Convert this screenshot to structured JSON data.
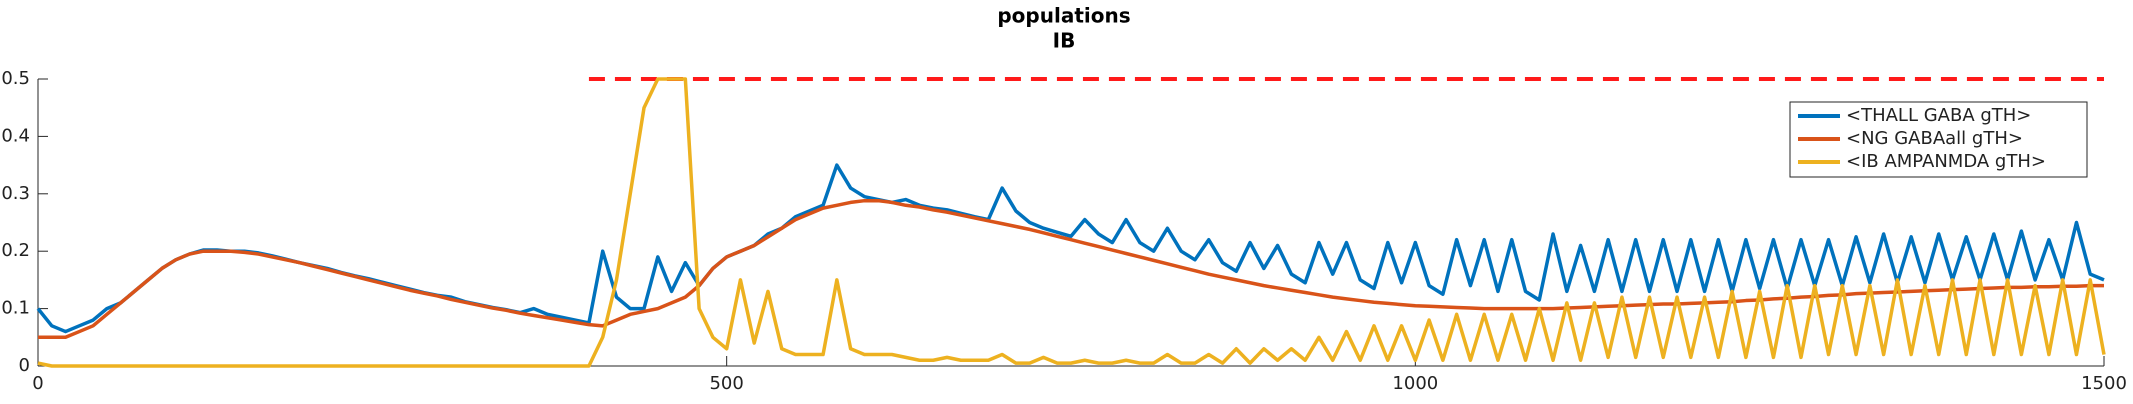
{
  "chart_data": {
    "type": "line",
    "title": "populations",
    "subtitle": "IB",
    "x": [
      0,
      10,
      20,
      30,
      40,
      50,
      60,
      70,
      80,
      90,
      100,
      110,
      120,
      130,
      140,
      150,
      160,
      170,
      180,
      190,
      200,
      210,
      220,
      230,
      240,
      250,
      260,
      270,
      280,
      290,
      300,
      310,
      320,
      330,
      340,
      350,
      360,
      370,
      380,
      390,
      400,
      410,
      420,
      430,
      440,
      450,
      460,
      470,
      480,
      490,
      500,
      510,
      520,
      530,
      540,
      550,
      560,
      570,
      580,
      590,
      600,
      610,
      620,
      630,
      640,
      650,
      660,
      670,
      680,
      690,
      700,
      710,
      720,
      730,
      740,
      750,
      760,
      770,
      780,
      790,
      800,
      810,
      820,
      830,
      840,
      850,
      860,
      870,
      880,
      890,
      900,
      910,
      920,
      930,
      940,
      950,
      960,
      970,
      980,
      990,
      1000,
      1010,
      1020,
      1030,
      1040,
      1050,
      1060,
      1070,
      1080,
      1090,
      1100,
      1110,
      1120,
      1130,
      1140,
      1150,
      1160,
      1170,
      1180,
      1190,
      1200,
      1210,
      1220,
      1230,
      1240,
      1250,
      1260,
      1270,
      1280,
      1290,
      1300,
      1310,
      1320,
      1330,
      1340,
      1350,
      1360,
      1370,
      1380,
      1390,
      1400,
      1410,
      1420,
      1430,
      1440,
      1450,
      1460,
      1470,
      1480,
      1490,
      1500
    ],
    "series": [
      {
        "name": "<THALL GABA gTH>",
        "color": "#0072bd",
        "values": [
          0.1,
          0.07,
          0.06,
          0.07,
          0.08,
          0.1,
          0.11,
          0.13,
          0.15,
          0.17,
          0.185,
          0.195,
          0.202,
          0.202,
          0.2,
          0.2,
          0.197,
          0.192,
          0.186,
          0.18,
          0.175,
          0.17,
          0.163,
          0.157,
          0.152,
          0.146,
          0.14,
          0.134,
          0.128,
          0.123,
          0.12,
          0.112,
          0.107,
          0.102,
          0.098,
          0.093,
          0.1,
          0.09,
          0.085,
          0.08,
          0.075,
          0.2,
          0.12,
          0.1,
          0.1,
          0.19,
          0.13,
          0.18,
          0.14,
          0.17,
          0.19,
          0.2,
          0.21,
          0.23,
          0.24,
          0.26,
          0.27,
          0.28,
          0.35,
          0.31,
          0.295,
          0.29,
          0.285,
          0.29,
          0.28,
          0.275,
          0.272,
          0.266,
          0.26,
          0.255,
          0.31,
          0.27,
          0.25,
          0.24,
          0.233,
          0.226,
          0.255,
          0.23,
          0.215,
          0.255,
          0.215,
          0.2,
          0.24,
          0.2,
          0.185,
          0.22,
          0.18,
          0.165,
          0.215,
          0.17,
          0.21,
          0.16,
          0.145,
          0.215,
          0.16,
          0.215,
          0.15,
          0.135,
          0.215,
          0.145,
          0.215,
          0.14,
          0.125,
          0.22,
          0.14,
          0.22,
          0.13,
          0.22,
          0.13,
          0.115,
          0.23,
          0.13,
          0.21,
          0.13,
          0.22,
          0.13,
          0.22,
          0.13,
          0.22,
          0.13,
          0.22,
          0.13,
          0.22,
          0.13,
          0.22,
          0.135,
          0.22,
          0.135,
          0.22,
          0.14,
          0.22,
          0.14,
          0.225,
          0.145,
          0.23,
          0.145,
          0.225,
          0.145,
          0.23,
          0.15,
          0.225,
          0.15,
          0.23,
          0.15,
          0.235,
          0.15,
          0.22,
          0.15,
          0.25,
          0.16,
          0.15
        ]
      },
      {
        "name": "<NG GABAall gTH>",
        "color": "#d95319",
        "values": [
          0.05,
          0.05,
          0.05,
          0.06,
          0.07,
          0.09,
          0.11,
          0.13,
          0.15,
          0.17,
          0.185,
          0.195,
          0.2,
          0.2,
          0.2,
          0.198,
          0.195,
          0.19,
          0.185,
          0.18,
          0.174,
          0.168,
          0.162,
          0.156,
          0.15,
          0.144,
          0.138,
          0.132,
          0.127,
          0.122,
          0.116,
          0.111,
          0.106,
          0.101,
          0.097,
          0.092,
          0.088,
          0.084,
          0.08,
          0.076,
          0.072,
          0.07,
          0.08,
          0.09,
          0.095,
          0.1,
          0.11,
          0.12,
          0.14,
          0.17,
          0.19,
          0.2,
          0.21,
          0.225,
          0.24,
          0.255,
          0.265,
          0.275,
          0.28,
          0.285,
          0.288,
          0.288,
          0.285,
          0.28,
          0.277,
          0.272,
          0.268,
          0.263,
          0.258,
          0.253,
          0.248,
          0.243,
          0.238,
          0.232,
          0.226,
          0.22,
          0.214,
          0.208,
          0.202,
          0.196,
          0.19,
          0.184,
          0.178,
          0.172,
          0.166,
          0.16,
          0.155,
          0.15,
          0.145,
          0.14,
          0.136,
          0.132,
          0.128,
          0.124,
          0.12,
          0.117,
          0.114,
          0.111,
          0.109,
          0.107,
          0.105,
          0.104,
          0.103,
          0.102,
          0.101,
          0.1,
          0.1,
          0.1,
          0.1,
          0.1,
          0.1,
          0.101,
          0.102,
          0.103,
          0.104,
          0.105,
          0.106,
          0.107,
          0.108,
          0.108,
          0.109,
          0.11,
          0.111,
          0.112,
          0.114,
          0.115,
          0.117,
          0.118,
          0.12,
          0.121,
          0.123,
          0.124,
          0.126,
          0.127,
          0.128,
          0.129,
          0.13,
          0.131,
          0.132,
          0.133,
          0.134,
          0.135,
          0.136,
          0.137,
          0.137,
          0.138,
          0.138,
          0.139,
          0.139,
          0.14,
          0.14
        ]
      },
      {
        "name": "<IB AMPANMDA gTH>",
        "color": "#edb120",
        "values": [
          0.005,
          0,
          0,
          0,
          0,
          0,
          0,
          0,
          0,
          0,
          0,
          0,
          0,
          0,
          0,
          0,
          0,
          0,
          0,
          0,
          0,
          0,
          0,
          0,
          0,
          0,
          0,
          0,
          0,
          0,
          0,
          0,
          0,
          0,
          0,
          0,
          0,
          0,
          0,
          0,
          0,
          0.05,
          0.15,
          0.3,
          0.45,
          0.5,
          0.5,
          0.5,
          0.1,
          0.05,
          0.03,
          0.15,
          0.04,
          0.13,
          0.03,
          0.02,
          0.02,
          0.02,
          0.15,
          0.03,
          0.02,
          0.02,
          0.02,
          0.015,
          0.01,
          0.01,
          0.015,
          0.01,
          0.01,
          0.01,
          0.02,
          0.005,
          0.005,
          0.015,
          0.005,
          0.005,
          0.01,
          0.005,
          0.005,
          0.01,
          0.005,
          0.005,
          0.02,
          0.005,
          0.005,
          0.02,
          0.005,
          0.03,
          0.005,
          0.03,
          0.01,
          0.03,
          0.01,
          0.05,
          0.01,
          0.06,
          0.01,
          0.07,
          0.01,
          0.07,
          0.01,
          0.08,
          0.01,
          0.09,
          0.01,
          0.09,
          0.01,
          0.09,
          0.01,
          0.1,
          0.01,
          0.11,
          0.01,
          0.11,
          0.015,
          0.12,
          0.015,
          0.12,
          0.015,
          0.12,
          0.015,
          0.12,
          0.015,
          0.13,
          0.015,
          0.13,
          0.015,
          0.14,
          0.015,
          0.14,
          0.02,
          0.14,
          0.02,
          0.14,
          0.02,
          0.15,
          0.02,
          0.14,
          0.02,
          0.15,
          0.02,
          0.15,
          0.02,
          0.15,
          0.02,
          0.14,
          0.02,
          0.15,
          0.02,
          0.15,
          0.02
        ]
      }
    ],
    "reference_line": {
      "y": 0.5,
      "x": [
        400,
        1500
      ],
      "color": "#ff1a1a",
      "dashed": true
    },
    "xlim": [
      0,
      1500
    ],
    "xticks": [
      0,
      500,
      1000,
      1500
    ],
    "ylim": [
      0,
      0.5
    ],
    "yticks": [
      0,
      0.1,
      0.2,
      0.3,
      0.4,
      0.5
    ],
    "legend": "upper right"
  }
}
